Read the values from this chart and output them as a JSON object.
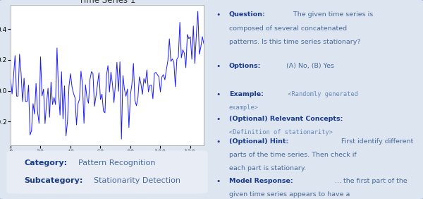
{
  "title": "Time Series 1",
  "ts_seed": 42,
  "ts_color": "#1a1aff",
  "plot_bg": "#ffffff",
  "outer_bg": "#dde5f0",
  "border_color": "#2255aa",
  "category": "Pattern Recognition",
  "subcategory": "Stationarity Detection",
  "bold_color": "#1a3a8a",
  "normal_color": "#4a6a9a",
  "mono_color": "#6688bb",
  "cat_box_bg": "#e8edf5",
  "font_size_main": 6.8,
  "font_size_mono": 6.2,
  "font_size_cat": 8.0,
  "bullet_entries": [
    {
      "bold": "Question:",
      "normal": " The given time series is\ncomposed of several concatenated\npatterns. Is this time series stationary?",
      "mono": false
    },
    {
      "bold": "Options:",
      "normal": " (A) No, (B) Yes",
      "mono": false
    },
    {
      "bold": "Example:",
      "normal": " <Randomly generated\nexample>",
      "mono": true
    },
    {
      "bold": "(Optional) Relevant Concepts:",
      "normal": "\n<Definition of stationarity>",
      "mono": true
    },
    {
      "bold": "(Optional) Hint:",
      "normal": " First identify different\nparts of the time series. Then check if\neach part is stationary.",
      "mono": false
    },
    {
      "bold": "Model Response:",
      "normal": " ... the first part of the\ngiven time series appears to have a\nrelatively constant mean and variance.\nTherefore, the correct answer is: B) Yes",
      "mono": false
    }
  ]
}
